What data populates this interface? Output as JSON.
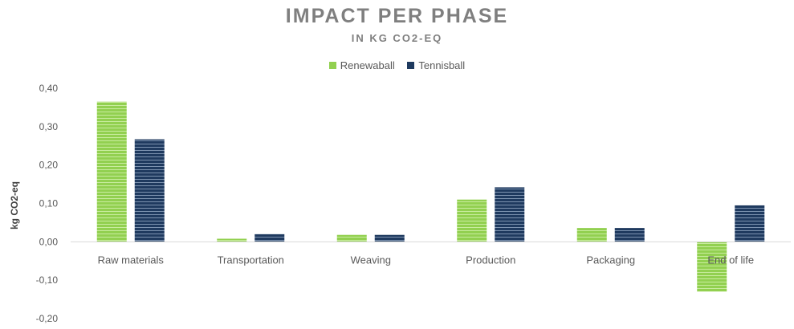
{
  "chart_data": {
    "type": "bar",
    "title": "IMPACT PER PHASE",
    "subtitle": "IN KG CO2-EQ",
    "ylabel": "kg CO2-eq",
    "xlabel": "",
    "categories": [
      "Raw materials",
      "Transportation",
      "Weaving",
      "Production",
      "Packaging",
      "End of life"
    ],
    "series": [
      {
        "name": "Renewaball",
        "color": "#92d050",
        "values": [
          0.365,
          0.008,
          0.018,
          0.11,
          0.036,
          -0.13
        ]
      },
      {
        "name": "Tennisball",
        "color": "#1f3a5f",
        "values": [
          0.267,
          0.02,
          0.018,
          0.142,
          0.036,
          0.095
        ]
      }
    ],
    "ylim": [
      -0.2,
      0.4
    ],
    "yticks": [
      0.4,
      0.3,
      0.2,
      0.1,
      0.0,
      -0.1,
      -0.2
    ],
    "ytick_labels": [
      "0,40",
      "0,30",
      "0,20",
      "0,10",
      "0,00",
      "-0,10",
      "-0,20"
    ],
    "grid": false,
    "legend_position": "top-center",
    "bar_pattern": "horizontal-stripes"
  }
}
